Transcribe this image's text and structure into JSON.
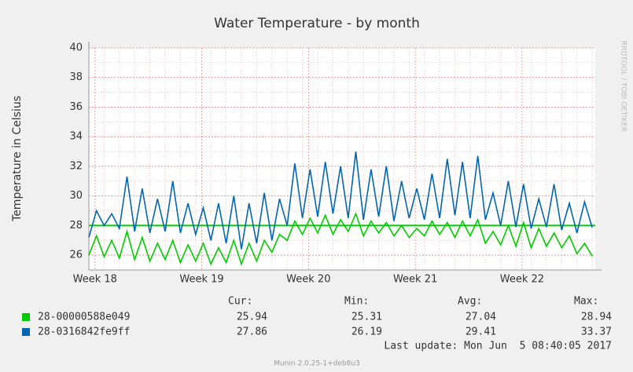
{
  "chart_data": {
    "type": "line",
    "title": "Water Temperature - by month",
    "y_label": "Temperature in Celsius",
    "side_label": "RRDTOOL / TOBI OETIKER",
    "xlim": [
      0,
      33.2
    ],
    "xticks": [
      {
        "value": 0.4,
        "label": "Week 18"
      },
      {
        "value": 7.4,
        "label": "Week 19"
      },
      {
        "value": 14.4,
        "label": "Week 20"
      },
      {
        "value": 21.4,
        "label": "Week 21"
      },
      {
        "value": 28.4,
        "label": "Week 22"
      }
    ],
    "ylim": [
      25,
      40
    ],
    "yticks": [
      26,
      28,
      30,
      32,
      34,
      36,
      38,
      40
    ],
    "grid": true,
    "minor_grid": true,
    "hrule": {
      "value": 28,
      "color": "#00cc00"
    },
    "x": [
      0,
      0.5,
      1,
      1.5,
      2,
      2.5,
      3,
      3.5,
      4,
      4.5,
      5,
      5.5,
      6,
      6.5,
      7,
      7.5,
      8,
      8.5,
      9,
      9.5,
      10,
      10.5,
      11,
      11.5,
      12,
      12.5,
      13,
      13.5,
      14,
      14.5,
      15,
      15.5,
      16,
      16.5,
      17,
      17.5,
      18,
      18.5,
      19,
      19.5,
      20,
      20.5,
      21,
      21.5,
      22,
      22.5,
      23,
      23.5,
      24,
      24.5,
      25,
      25.5,
      26,
      26.5,
      27,
      27.5,
      28,
      28.5,
      29,
      29.5,
      30,
      30.5,
      31,
      31.5,
      32,
      32.5,
      33
    ],
    "stat_headers": [
      "Cur:",
      "Min:",
      "Avg:",
      "Max:"
    ],
    "series": [
      {
        "name": "28-00000588e049",
        "color": "#00cc00",
        "values": [
          26.0,
          27.3,
          25.9,
          27.0,
          25.8,
          27.6,
          25.7,
          27.2,
          25.6,
          26.8,
          25.7,
          27.0,
          25.5,
          26.7,
          25.6,
          26.8,
          25.4,
          26.5,
          25.5,
          27.0,
          25.4,
          26.8,
          25.6,
          27.0,
          26.2,
          27.4,
          27.0,
          28.3,
          27.4,
          28.5,
          27.5,
          28.7,
          27.4,
          28.4,
          27.6,
          28.8,
          27.3,
          28.3,
          27.5,
          28.2,
          27.3,
          28.0,
          27.2,
          27.8,
          27.3,
          28.3,
          27.4,
          28.2,
          27.2,
          28.3,
          27.3,
          28.4,
          26.8,
          27.6,
          26.7,
          28.0,
          26.6,
          28.2,
          26.5,
          27.8,
          26.6,
          27.5,
          26.5,
          27.3,
          26.1,
          26.8,
          25.94
        ],
        "stats": [
          25.94,
          25.31,
          27.04,
          28.94
        ]
      },
      {
        "name": "28-0316842fe9ff",
        "color": "#0066b3",
        "values": [
          27.2,
          29.0,
          28.0,
          28.8,
          27.8,
          31.3,
          27.6,
          30.5,
          27.5,
          29.8,
          27.6,
          31.0,
          27.5,
          29.5,
          27.4,
          29.2,
          27.0,
          29.5,
          26.8,
          30.0,
          26.4,
          29.5,
          26.8,
          30.2,
          27.0,
          29.8,
          28.0,
          32.2,
          28.5,
          31.8,
          28.6,
          32.3,
          28.8,
          32.0,
          28.5,
          33.0,
          28.4,
          31.8,
          28.6,
          32.0,
          28.3,
          31.0,
          28.5,
          30.5,
          28.4,
          31.5,
          28.5,
          32.5,
          28.7,
          32.3,
          28.5,
          32.7,
          28.4,
          30.2,
          28.0,
          31.0,
          27.9,
          30.8,
          27.8,
          29.8,
          27.9,
          30.8,
          27.7,
          29.5,
          27.5,
          29.6,
          27.86
        ],
        "stats": [
          27.86,
          26.19,
          29.41,
          33.37
        ]
      }
    ],
    "last_update": "Last update: Mon Jun  5 08:40:05 2017",
    "footer": "Munin 2.0.25-1+deb8u3"
  }
}
